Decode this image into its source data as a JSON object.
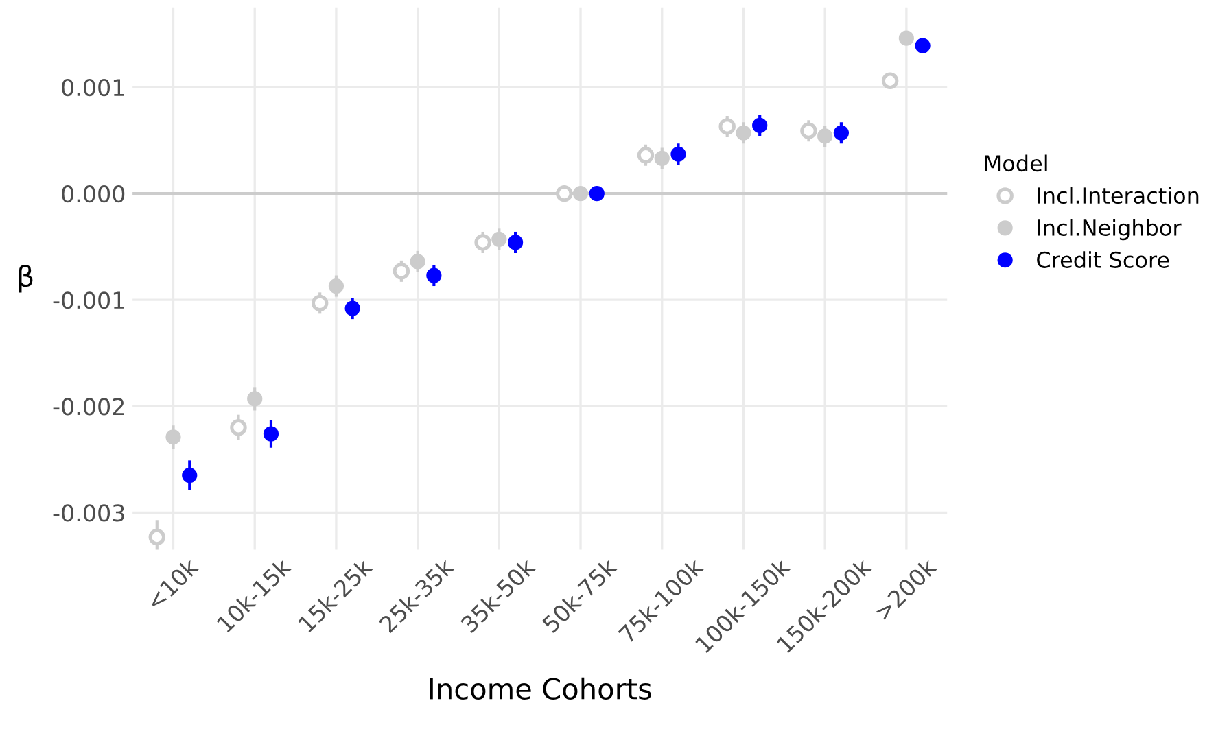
{
  "chart_data": {
    "type": "scatter",
    "xlabel": "Income Cohorts",
    "ylabel": "β",
    "legend_title": "Model",
    "categories": [
      "<10k",
      "10k-15k",
      "15k-25k",
      "25k-35k",
      "35k-50k",
      "50k-75k",
      "75k-100k",
      "100k-150k",
      "150k-200k",
      ">200k"
    ],
    "series": [
      {
        "name": "Incl.Interaction",
        "color": "#cccccc",
        "values": [
          -0.00323,
          -0.0022,
          -0.00103,
          -0.00073,
          -0.00046,
          0,
          0.00036,
          0.00063,
          0.00059,
          0.00106
        ],
        "errors": [
          0.00016,
          0.00012,
          0.0001,
          0.0001,
          0.0001,
          2e-05,
          0.0001,
          0.0001,
          0.0001,
          6e-05
        ]
      },
      {
        "name": "Incl.Neighbor",
        "color": "#cccccc",
        "values": [
          -0.00229,
          -0.00193,
          -0.00087,
          -0.00064,
          -0.00043,
          0,
          0.00033,
          0.00057,
          0.00054,
          0.00146
        ],
        "errors": [
          0.00011,
          0.00011,
          0.0001,
          0.0001,
          0.0001,
          2e-05,
          0.0001,
          0.0001,
          0.0001,
          5e-05
        ]
      },
      {
        "name": "Credit Score",
        "color": "#0000ff",
        "values": [
          -0.00265,
          -0.00226,
          -0.00108,
          -0.00077,
          -0.00046,
          0,
          0.00037,
          0.00064,
          0.00057,
          0.00139
        ],
        "errors": [
          0.00014,
          0.00013,
          0.0001,
          0.0001,
          0.0001,
          2e-05,
          0.0001,
          0.0001,
          0.0001,
          6e-05
        ]
      }
    ],
    "ylim": [
      -0.00335,
      0.00175
    ],
    "yticks": [
      {
        "value": -0.003,
        "label": "-0.003"
      },
      {
        "value": -0.002,
        "label": "-0.002"
      },
      {
        "value": -0.001,
        "label": "-0.001"
      },
      {
        "value": 0,
        "label": "0.000"
      },
      {
        "value": 0.001,
        "label": "0.001"
      }
    ],
    "ref_lines": [
      {
        "axis": "y",
        "value": 0,
        "color": "#cccccc"
      }
    ],
    "grid": true,
    "legend": "right",
    "marker": "circle"
  }
}
